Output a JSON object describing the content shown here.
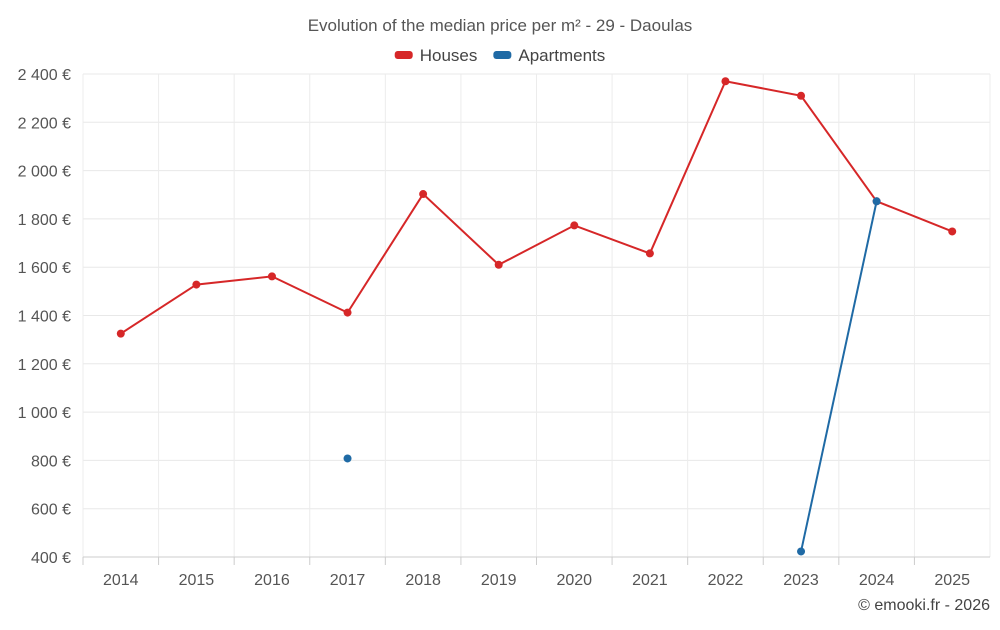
{
  "chart_data": {
    "type": "line",
    "title": "Evolution of the median price per m² - 29 - Daoulas",
    "xlabel": "",
    "ylabel": "",
    "categories": [
      "2014",
      "2015",
      "2016",
      "2017",
      "2018",
      "2019",
      "2020",
      "2021",
      "2022",
      "2023",
      "2024",
      "2025"
    ],
    "ylim": [
      400,
      2400
    ],
    "yticks": [
      400,
      600,
      800,
      1000,
      1200,
      1400,
      1600,
      1800,
      2000,
      2200,
      2400
    ],
    "ytick_labels": [
      "400 €",
      "600 €",
      "800 €",
      "1 000 €",
      "1 200 €",
      "1 400 €",
      "1 600 €",
      "1 800 €",
      "2 000 €",
      "2 200 €",
      "2 400 €"
    ],
    "grid": true,
    "legend_position": "top-center",
    "series": [
      {
        "name": "Houses",
        "color": "#d62728",
        "values": [
          1325,
          1528,
          1562,
          1412,
          1903,
          1610,
          1773,
          1657,
          2370,
          2310,
          1873,
          1748
        ]
      },
      {
        "name": "Apartments",
        "color": "#1f6aa5",
        "values": [
          null,
          null,
          null,
          808,
          null,
          null,
          null,
          null,
          null,
          423,
          1873,
          null
        ]
      }
    ],
    "credit": "© emooki.fr - 2026"
  }
}
